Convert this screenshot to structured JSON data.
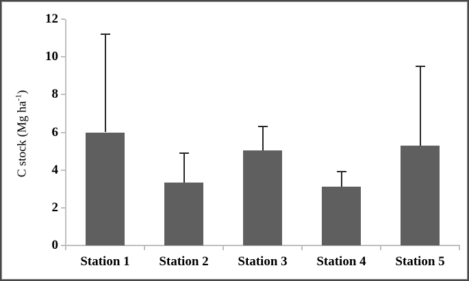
{
  "chart_data": {
    "type": "bar",
    "title": "",
    "categories": [
      "Station 1",
      "Station 2",
      "Station 3",
      "Station 4",
      "Station 5"
    ],
    "values": [
      6.0,
      3.35,
      5.05,
      3.1,
      5.3
    ],
    "error_upper": [
      5.2,
      1.55,
      1.25,
      0.8,
      4.2
    ],
    "xlabel": "",
    "ylabel": "C stock (Mg ha⁻¹)",
    "ylabel_prefix": "C stock (Mg ha",
    "ylabel_sup": "-1",
    "ylabel_suffix": ")",
    "ylim": [
      0,
      12
    ],
    "yticks": [
      0,
      2,
      4,
      6,
      8,
      10,
      12
    ],
    "grid": false,
    "legend": false,
    "bar_color": "#5f5f5f",
    "axis_color": "#bfbfbf",
    "error_color": "#262626",
    "text_color": "#000000"
  }
}
